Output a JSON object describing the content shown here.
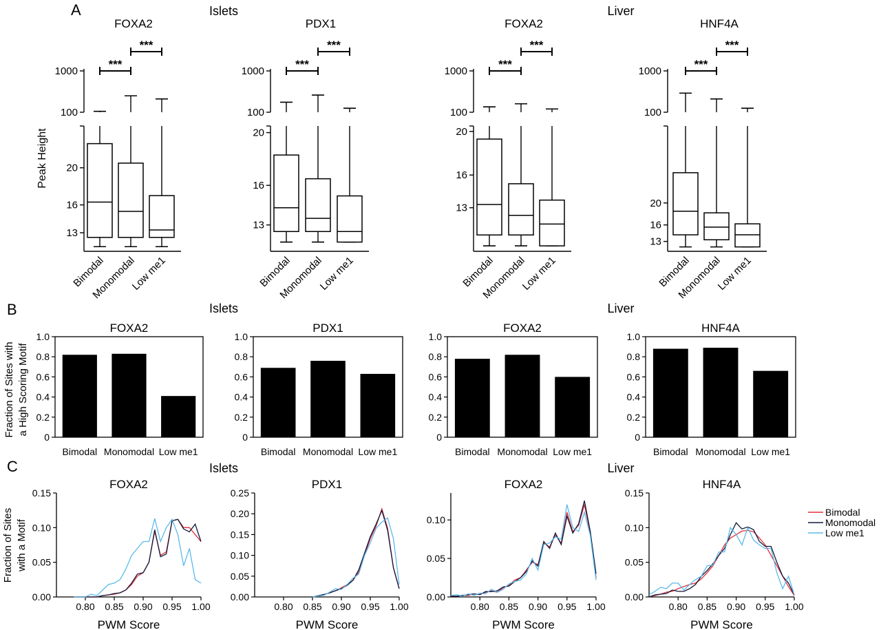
{
  "panels": {
    "A": {
      "letter": "A",
      "group_left": "Islets",
      "group_right": "Liver"
    },
    "B": {
      "letter": "B",
      "group_left": "Islets",
      "group_right": "Liver"
    },
    "C": {
      "letter": "C",
      "group_left": "Islets",
      "group_right": "Liver"
    }
  },
  "chart_data": [
    {
      "panel": "A",
      "type": "box",
      "title": "FOXA2",
      "ylabel": "Peak Height",
      "categories": [
        "Bimodal",
        "Monomodal",
        "Low me1"
      ],
      "yscale": "broken: log (100-1000) above, linear (~11-24) below",
      "upper_ticks": [
        "100",
        "1000"
      ],
      "lower_ticks": [
        "13",
        "16",
        "20"
      ],
      "boxes": [
        {
          "category": "Bimodal",
          "lower_whisker": 11.5,
          "q1": 12.5,
          "median": 16.3,
          "q3": 22.6,
          "upper_whisker": 105
        },
        {
          "category": "Monomodal",
          "lower_whisker": 11.5,
          "q1": 12.5,
          "median": 15.3,
          "q3": 20.5,
          "upper_whisker": 250
        },
        {
          "category": "Low me1",
          "lower_whisker": 11.5,
          "q1": 12.5,
          "median": 13.3,
          "q3": 17.0,
          "upper_whisker": 210
        }
      ],
      "significance": [
        {
          "from": "Bimodal",
          "to": "Monomodal",
          "label": "***"
        },
        {
          "from": "Monomodal",
          "to": "Low me1",
          "label": "***"
        }
      ]
    },
    {
      "panel": "A",
      "type": "box",
      "title": "PDX1",
      "categories": [
        "Bimodal",
        "Monomodal",
        "Low me1"
      ],
      "upper_ticks": [
        "100",
        "1000"
      ],
      "lower_ticks": [
        "13",
        "16",
        "20"
      ],
      "boxes": [
        {
          "category": "Bimodal",
          "lower_whisker": 11.7,
          "q1": 12.5,
          "median": 14.3,
          "q3": 18.3,
          "upper_whisker": 175
        },
        {
          "category": "Monomodal",
          "lower_whisker": 11.7,
          "q1": 12.5,
          "median": 13.5,
          "q3": 16.5,
          "upper_whisker": 260
        },
        {
          "category": "Low me1",
          "lower_whisker": 11.7,
          "q1": 11.7,
          "median": 12.5,
          "q3": 15.2,
          "upper_whisker": 125
        }
      ],
      "significance": [
        {
          "from": "Bimodal",
          "to": "Monomodal",
          "label": "***"
        },
        {
          "from": "Monomodal",
          "to": "Low me1",
          "label": "***"
        }
      ]
    },
    {
      "panel": "A",
      "type": "box",
      "title": "FOXA2",
      "categories": [
        "Bimodal",
        "Monomodal",
        "Low me1"
      ],
      "upper_ticks": [
        "100",
        "1000"
      ],
      "lower_ticks": [
        "13",
        "16",
        "20"
      ],
      "boxes": [
        {
          "category": "Bimodal",
          "lower_whisker": 9.5,
          "q1": 10.5,
          "median": 13.3,
          "q3": 19.3,
          "upper_whisker": 135
        },
        {
          "category": "Monomodal",
          "lower_whisker": 9.5,
          "q1": 10.5,
          "median": 12.3,
          "q3": 15.2,
          "upper_whisker": 160
        },
        {
          "category": "Low me1",
          "lower_whisker": 9.5,
          "q1": 9.5,
          "median": 11.5,
          "q3": 13.7,
          "upper_whisker": 120
        }
      ],
      "significance": [
        {
          "from": "Bimodal",
          "to": "Monomodal",
          "label": "***"
        },
        {
          "from": "Monomodal",
          "to": "Low me1",
          "label": "***"
        }
      ]
    },
    {
      "panel": "A",
      "type": "box",
      "title": "HNF4A",
      "categories": [
        "Bimodal",
        "Monomodal",
        "Low me1"
      ],
      "upper_ticks": [
        "100",
        "1000"
      ],
      "lower_ticks": [
        "13",
        "16",
        "20"
      ],
      "boxes": [
        {
          "category": "Bimodal",
          "lower_whisker": 12.0,
          "q1": 14.2,
          "median": 18.5,
          "q3": 25.5,
          "upper_whisker": 290
        },
        {
          "category": "Monomodal",
          "lower_whisker": 12.0,
          "q1": 13.3,
          "median": 15.6,
          "q3": 18.2,
          "upper_whisker": 210
        },
        {
          "category": "Low me1",
          "lower_whisker": 12.0,
          "q1": 12.0,
          "median": 14.2,
          "q3": 16.2,
          "upper_whisker": 125
        }
      ],
      "significance": [
        {
          "from": "Bimodal",
          "to": "Monomodal",
          "label": "***"
        },
        {
          "from": "Monomodal",
          "to": "Low me1",
          "label": "***"
        }
      ]
    },
    {
      "panel": "B",
      "type": "bar",
      "title": "FOXA2",
      "ylabel": [
        "Fraction of Sites with",
        "a High Scoring Motif"
      ],
      "categories": [
        "Bimodal",
        "Monomodal",
        "Low me1"
      ],
      "values": [
        0.82,
        0.83,
        0.41
      ],
      "ylim": [
        0,
        1.0
      ],
      "yticks": [
        "0",
        "0.2",
        "0.4",
        "0.6",
        "0.8",
        "1.0"
      ]
    },
    {
      "panel": "B",
      "type": "bar",
      "title": "PDX1",
      "categories": [
        "Bimodal",
        "Monomodal",
        "Low me1"
      ],
      "values": [
        0.69,
        0.76,
        0.63
      ],
      "ylim": [
        0,
        1.0
      ],
      "yticks": [
        "0",
        "0.2",
        "0.4",
        "0.6",
        "0.8",
        "1.0"
      ]
    },
    {
      "panel": "B",
      "type": "bar",
      "title": "FOXA2",
      "categories": [
        "Bimodal",
        "Monomodal",
        "Low me1"
      ],
      "values": [
        0.78,
        0.82,
        0.6
      ],
      "ylim": [
        0,
        1.0
      ],
      "yticks": [
        "0",
        "0.2",
        "0.4",
        "0.6",
        "0.8",
        "1.0"
      ]
    },
    {
      "panel": "B",
      "type": "bar",
      "title": "HNF4A",
      "categories": [
        "Bimodal",
        "Monomodal",
        "Low me1"
      ],
      "values": [
        0.88,
        0.89,
        0.66
      ],
      "ylim": [
        0,
        1.0
      ],
      "yticks": [
        "0",
        "0.2",
        "0.4",
        "0.6",
        "0.8",
        "1.0"
      ]
    },
    {
      "panel": "C",
      "type": "line",
      "title": "FOXA2",
      "xlabel": "PWM Score",
      "ylabel": [
        "Fraction of Sites",
        "with a Motif"
      ],
      "xlim": [
        0.75,
        1.0
      ],
      "ylim": [
        0,
        0.15
      ],
      "xticks": [
        "0.80",
        "0.85",
        "0.90",
        "0.95",
        "1.00"
      ],
      "yticks": [
        "0.00",
        "0.05",
        "0.10",
        "0.15"
      ],
      "x": [
        0.78,
        0.79,
        0.8,
        0.81,
        0.82,
        0.83,
        0.84,
        0.85,
        0.86,
        0.87,
        0.88,
        0.89,
        0.9,
        0.91,
        0.92,
        0.93,
        0.94,
        0.95,
        0.96,
        0.97,
        0.98,
        0.99,
        1.0
      ],
      "series": [
        {
          "name": "Bimodal",
          "color": "#e0303a",
          "values": [
            0,
            0,
            0,
            0,
            0,
            0.002,
            0.003,
            0.004,
            0.006,
            0.01,
            0.018,
            0.03,
            0.035,
            0.05,
            0.095,
            0.06,
            0.065,
            0.11,
            0.112,
            0.1,
            0.1,
            0.09,
            0.08
          ]
        },
        {
          "name": "Monomodal",
          "color": "#10183a",
          "values": [
            0,
            0,
            0,
            0,
            0,
            0.002,
            0.003,
            0.005,
            0.006,
            0.01,
            0.02,
            0.033,
            0.035,
            0.05,
            0.097,
            0.058,
            0.062,
            0.11,
            0.112,
            0.098,
            0.094,
            0.105,
            0.08
          ]
        },
        {
          "name": "Low me1",
          "color": "#5ab9ea",
          "values": [
            0,
            0,
            0,
            0.004,
            0.002,
            0.01,
            0.018,
            0.02,
            0.025,
            0.04,
            0.06,
            0.07,
            0.08,
            0.08,
            0.113,
            0.08,
            0.1,
            0.112,
            0.09,
            0.045,
            0.07,
            0.025,
            0.02
          ]
        }
      ]
    },
    {
      "panel": "C",
      "type": "line",
      "title": "PDX1",
      "xlabel": "PWM Score",
      "xlim": [
        0.75,
        1.0
      ],
      "ylim": [
        0,
        0.25
      ],
      "xticks": [
        "0.80",
        "0.85",
        "0.90",
        "0.95",
        "1.00"
      ],
      "yticks": [
        "0.00",
        "0.05",
        "0.10",
        "0.15",
        "0.20",
        "0.25"
      ],
      "x": [
        0.85,
        0.86,
        0.87,
        0.88,
        0.89,
        0.9,
        0.91,
        0.92,
        0.93,
        0.94,
        0.95,
        0.96,
        0.97,
        0.98,
        0.99,
        1.0
      ],
      "series": [
        {
          "name": "Bimodal",
          "color": "#e0303a",
          "values": [
            0,
            0.003,
            0.006,
            0.01,
            0.015,
            0.022,
            0.03,
            0.04,
            0.06,
            0.1,
            0.14,
            0.17,
            0.212,
            0.165,
            0.07,
            0.02
          ]
        },
        {
          "name": "Monomodal",
          "color": "#10183a",
          "values": [
            0,
            0.003,
            0.006,
            0.01,
            0.015,
            0.02,
            0.028,
            0.04,
            0.065,
            0.105,
            0.145,
            0.175,
            0.208,
            0.16,
            0.07,
            0.02
          ]
        },
        {
          "name": "Low me1",
          "color": "#5ab9ea",
          "values": [
            0,
            0.002,
            0.004,
            0.012,
            0.02,
            0.018,
            0.03,
            0.045,
            0.055,
            0.1,
            0.13,
            0.165,
            0.18,
            0.19,
            0.14,
            0.03
          ]
        }
      ]
    },
    {
      "panel": "C",
      "type": "line",
      "title": "FOXA2",
      "xlabel": "PWM Score",
      "xlim": [
        0.75,
        1.0
      ],
      "ylim": [
        0,
        0.135
      ],
      "xticks": [
        "0.80",
        "0.85",
        "0.90",
        "0.95",
        "1.00"
      ],
      "yticks": [
        "0.00",
        "0.05",
        "0.10"
      ],
      "x": [
        0.75,
        0.76,
        0.77,
        0.78,
        0.79,
        0.8,
        0.81,
        0.82,
        0.83,
        0.84,
        0.85,
        0.86,
        0.87,
        0.88,
        0.89,
        0.9,
        0.91,
        0.92,
        0.93,
        0.94,
        0.95,
        0.96,
        0.97,
        0.98,
        0.99,
        1.0
      ],
      "series": [
        {
          "name": "Bimodal",
          "color": "#e0303a",
          "values": [
            0.001,
            0.001,
            0.002,
            0.002,
            0.004,
            0.003,
            0.006,
            0.008,
            0.006,
            0.012,
            0.015,
            0.022,
            0.025,
            0.035,
            0.045,
            0.042,
            0.07,
            0.065,
            0.08,
            0.07,
            0.11,
            0.085,
            0.093,
            0.12,
            0.083,
            0.025
          ]
        },
        {
          "name": "Monomodal",
          "color": "#10183a",
          "values": [
            0.001,
            0.001,
            0.002,
            0.003,
            0.004,
            0.003,
            0.007,
            0.007,
            0.008,
            0.013,
            0.014,
            0.02,
            0.025,
            0.033,
            0.047,
            0.04,
            0.072,
            0.063,
            0.083,
            0.068,
            0.105,
            0.083,
            0.095,
            0.125,
            0.085,
            0.03
          ]
        },
        {
          "name": "Low me1",
          "color": "#5ab9ea",
          "values": [
            0.002,
            0.003,
            0.001,
            0.004,
            0.002,
            0.005,
            0.004,
            0.01,
            0.006,
            0.01,
            0.017,
            0.02,
            0.022,
            0.03,
            0.05,
            0.035,
            0.068,
            0.07,
            0.078,
            0.075,
            0.12,
            0.09,
            0.085,
            0.11,
            0.08,
            0.022
          ]
        }
      ]
    },
    {
      "panel": "C",
      "type": "line",
      "title": "HNF4A",
      "xlabel": "PWM Score",
      "xlim": [
        0.75,
        1.0
      ],
      "ylim": [
        0,
        0.15
      ],
      "xticks": [
        "0.80",
        "0.85",
        "0.90",
        "0.95",
        "1.00"
      ],
      "yticks": [
        "0.00",
        "0.05",
        "0.10",
        "0.15"
      ],
      "x": [
        0.75,
        0.76,
        0.77,
        0.78,
        0.79,
        0.8,
        0.81,
        0.82,
        0.83,
        0.84,
        0.85,
        0.86,
        0.87,
        0.88,
        0.89,
        0.9,
        0.91,
        0.92,
        0.93,
        0.94,
        0.95,
        0.96,
        0.97,
        0.98,
        0.99,
        1.0
      ],
      "series": [
        {
          "name": "Bimodal",
          "color": "#e0303a",
          "values": [
            0,
            0.002,
            0.004,
            0.007,
            0.008,
            0.012,
            0.015,
            0.018,
            0.02,
            0.026,
            0.035,
            0.045,
            0.06,
            0.075,
            0.085,
            0.09,
            0.095,
            0.096,
            0.094,
            0.085,
            0.075,
            0.06,
            0.045,
            0.03,
            0.015,
            0.002
          ]
        },
        {
          "name": "Monomodal",
          "color": "#10183a",
          "values": [
            0,
            0.003,
            0.004,
            0.005,
            0.01,
            0.008,
            0.008,
            0.012,
            0.018,
            0.03,
            0.038,
            0.048,
            0.06,
            0.07,
            0.09,
            0.107,
            0.098,
            0.101,
            0.097,
            0.08,
            0.073,
            0.073,
            0.05,
            0.03,
            0.02,
            0.003
          ]
        },
        {
          "name": "Low me1",
          "color": "#5ab9ea",
          "values": [
            0.003,
            0.008,
            0.014,
            0.012,
            0.02,
            0.02,
            0.01,
            0.018,
            0.025,
            0.03,
            0.045,
            0.046,
            0.065,
            0.065,
            0.1,
            0.09,
            0.075,
            0.1,
            0.082,
            0.075,
            0.07,
            0.07,
            0.035,
            0.012,
            0.03,
            0.003
          ]
        }
      ]
    }
  ],
  "legend": [
    {
      "name": "Bimodal",
      "color": "#e0303a"
    },
    {
      "name": "Monomodal",
      "color": "#10183a"
    },
    {
      "name": "Low me1",
      "color": "#5ab9ea"
    }
  ]
}
